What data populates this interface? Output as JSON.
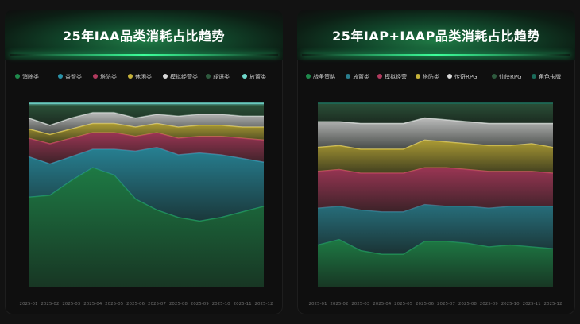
{
  "chart_data": [
    {
      "type": "area",
      "title": "25年IAA品类消耗占比趋势",
      "x": [
        "2025-01",
        "2025-02",
        "2025-03",
        "2025-04",
        "2025-05",
        "2025-06",
        "2025-07",
        "2025-08",
        "2025-09",
        "2025-10",
        "2025-11",
        "2025-12"
      ],
      "ylim": [
        0,
        100
      ],
      "grid": false,
      "legend_position": "top",
      "series": [
        {
          "name": "消除类",
          "color": "#1f8a4c",
          "values": [
            49,
            50,
            58,
            65,
            61,
            48,
            42,
            38,
            36,
            38,
            41,
            44
          ]
        },
        {
          "name": "益智类",
          "color": "#2a92a8",
          "values": [
            22,
            17,
            13,
            10,
            14,
            26,
            34,
            34,
            37,
            34,
            29,
            24
          ]
        },
        {
          "name": "塔防类",
          "color": "#b03a5e",
          "values": [
            10,
            11,
            10,
            9,
            9,
            8,
            8,
            9,
            9,
            10,
            11,
            12
          ]
        },
        {
          "name": "休闲类",
          "color": "#c6b23a",
          "values": [
            5,
            5,
            5,
            5,
            5,
            5,
            5,
            6,
            6,
            6,
            6,
            7
          ]
        },
        {
          "name": "模拟经营类",
          "color": "#d8d8d8",
          "values": [
            6,
            5,
            6,
            6,
            6,
            5,
            5,
            6,
            6,
            6,
            6,
            6
          ]
        },
        {
          "name": "成语类",
          "color": "#2e5a3e",
          "values": [
            7,
            11,
            7,
            4,
            4,
            7,
            5,
            6,
            5,
            5,
            6,
            6
          ]
        },
        {
          "name": "放置类",
          "color": "#6fd8cb",
          "values": [
            1,
            1,
            1,
            1,
            1,
            1,
            1,
            1,
            1,
            1,
            1,
            1
          ]
        }
      ]
    },
    {
      "type": "area",
      "title": "25年IAP+IAAP品类消耗占比趋势",
      "x": [
        "2025-01",
        "2025-02",
        "2025-03",
        "2025-04",
        "2025-05",
        "2025-06",
        "2025-07",
        "2025-08",
        "2025-09",
        "2025-10",
        "2025-11",
        "2025-12"
      ],
      "ylim": [
        0,
        100
      ],
      "grid": false,
      "legend_position": "top",
      "series": [
        {
          "name": "战争策略",
          "color": "#1f8a4c",
          "values": [
            23,
            26,
            20,
            18,
            18,
            25,
            25,
            24,
            22,
            23,
            22,
            21
          ]
        },
        {
          "name": "放置类",
          "color": "#2a7e8e",
          "values": [
            20,
            18,
            22,
            23,
            23,
            20,
            19,
            20,
            21,
            21,
            22,
            23
          ]
        },
        {
          "name": "模拟经营",
          "color": "#b03a5e",
          "values": [
            20,
            20,
            20,
            21,
            21,
            20,
            21,
            20,
            20,
            19,
            19,
            18
          ]
        },
        {
          "name": "塔防类",
          "color": "#c6b23a",
          "values": [
            13,
            13,
            13,
            13,
            13,
            15,
            14,
            14,
            14,
            14,
            15,
            14
          ]
        },
        {
          "name": "传奇RPG",
          "color": "#d8d8d8",
          "values": [
            14,
            13,
            14,
            14,
            14,
            12,
            12,
            12,
            12,
            12,
            11,
            13
          ]
        },
        {
          "name": "仙侠RPG",
          "color": "#2e5a3e",
          "values": [
            10,
            10,
            11,
            11,
            11,
            8,
            9,
            10,
            11,
            11,
            11,
            11
          ]
        },
        {
          "name": "角色卡牌",
          "color": "#1a6b5a",
          "values": [
            0,
            0,
            0,
            0,
            0,
            0,
            0,
            0,
            0,
            0,
            0,
            0
          ]
        }
      ]
    }
  ]
}
